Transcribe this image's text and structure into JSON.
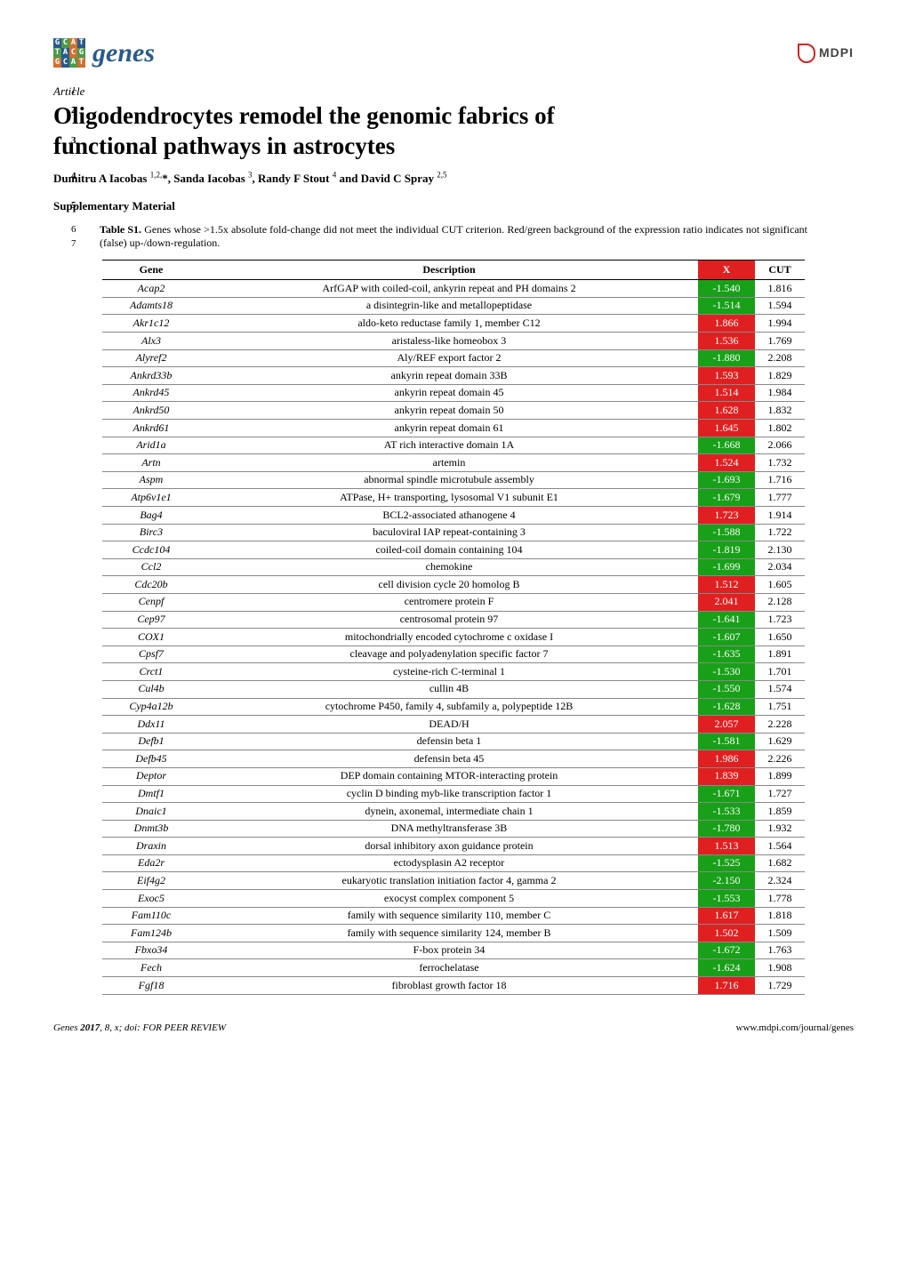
{
  "journal": {
    "name": "genes"
  },
  "publisher": {
    "name": "MDPI"
  },
  "article_label": "Article",
  "title_line1": "Oligodendrocytes remodel the genomic fabrics of",
  "title_line2": "functional pathways in astrocytes",
  "authors": "Dumitru A Iacobas 1,2,*, Sanda Iacobas 3, Randy F Stout 4 and David C Spray 2,5",
  "supp_heading": "Supplementary Material",
  "caption_bold": "Table S1.",
  "caption_rest": " Genes whose >1.5x absolute fold-change did not meet the individual CUT criterion. Red/green background of the expression ratio indicates not significant (false) up-/down-regulation.",
  "line_numbers": [
    "1",
    "2",
    "3",
    "4",
    "5",
    "6",
    "7"
  ],
  "footer_left": "Genes 2017, 8, x; doi: FOR PEER REVIEW",
  "footer_right": "www.mdpi.com/journal/genes",
  "table": {
    "type": "table",
    "background_color": "#ffffff",
    "header_border_color": "#000000",
    "row_border_color": "#888888",
    "font_size_pt": 9,
    "col1_style": "italic",
    "x_colors": {
      "up": "#e02020",
      "down": "#18a018",
      "text": "#ffffff"
    },
    "columns": [
      "Gene",
      "Description",
      "X",
      "CUT"
    ],
    "rows": [
      [
        "Acap2",
        "ArfGAP with coiled-coil, ankyrin repeat and PH domains 2",
        "-1.540",
        "1.816"
      ],
      [
        "Adamts18",
        "a disintegrin-like and metallopeptidase",
        "-1.514",
        "1.594"
      ],
      [
        "Akr1c12",
        "aldo-keto reductase family 1, member C12",
        "1.866",
        "1.994"
      ],
      [
        "Alx3",
        "aristaless-like homeobox 3",
        "1.536",
        "1.769"
      ],
      [
        "Alyref2",
        "Aly/REF export factor 2",
        "-1.880",
        "2.208"
      ],
      [
        "Ankrd33b",
        "ankyrin repeat domain 33B",
        "1.593",
        "1.829"
      ],
      [
        "Ankrd45",
        "ankyrin repeat domain 45",
        "1.514",
        "1.984"
      ],
      [
        "Ankrd50",
        "ankyrin repeat domain 50",
        "1.628",
        "1.832"
      ],
      [
        "Ankrd61",
        "ankyrin repeat domain 61",
        "1.645",
        "1.802"
      ],
      [
        "Arid1a",
        "AT rich interactive domain 1A",
        "-1.668",
        "2.066"
      ],
      [
        "Artn",
        "artemin",
        "1.524",
        "1.732"
      ],
      [
        "Aspm",
        "abnormal spindle microtubule assembly",
        "-1.693",
        "1.716"
      ],
      [
        "Atp6v1e1",
        "ATPase, H+ transporting, lysosomal V1 subunit E1",
        "-1.679",
        "1.777"
      ],
      [
        "Bag4",
        "BCL2-associated athanogene 4",
        "1.723",
        "1.914"
      ],
      [
        "Birc3",
        "baculoviral IAP repeat-containing 3",
        "-1.588",
        "1.722"
      ],
      [
        "Ccdc104",
        "coiled-coil domain containing 104",
        "-1.819",
        "2.130"
      ],
      [
        "Ccl2",
        "chemokine",
        "-1.699",
        "2.034"
      ],
      [
        "Cdc20b",
        "cell division cycle 20 homolog B",
        "1.512",
        "1.605"
      ],
      [
        "Cenpf",
        "centromere protein F",
        "2.041",
        "2.128"
      ],
      [
        "Cep97",
        "centrosomal protein 97",
        "-1.641",
        "1.723"
      ],
      [
        "COX1",
        "mitochondrially encoded cytochrome c oxidase I",
        "-1.607",
        "1.650"
      ],
      [
        "Cpsf7",
        "cleavage and polyadenylation specific factor 7",
        "-1.635",
        "1.891"
      ],
      [
        "Crct1",
        "cysteine-rich C-terminal 1",
        "-1.530",
        "1.701"
      ],
      [
        "Cul4b",
        "cullin 4B",
        "-1.550",
        "1.574"
      ],
      [
        "Cyp4a12b",
        "cytochrome P450, family 4, subfamily a, polypeptide 12B",
        "-1.628",
        "1.751"
      ],
      [
        "Ddx11",
        "DEAD/H",
        "2.057",
        "2.228"
      ],
      [
        "Defb1",
        "defensin beta 1",
        "-1.581",
        "1.629"
      ],
      [
        "Defb45",
        "defensin beta 45",
        "1.986",
        "2.226"
      ],
      [
        "Deptor",
        "DEP domain containing MTOR-interacting protein",
        "1.839",
        "1.899"
      ],
      [
        "Dmtf1",
        "cyclin D binding myb-like transcription factor 1",
        "-1.671",
        "1.727"
      ],
      [
        "Dnaic1",
        "dynein, axonemal, intermediate chain 1",
        "-1.533",
        "1.859"
      ],
      [
        "Dnmt3b",
        "DNA methyltransferase 3B",
        "-1.780",
        "1.932"
      ],
      [
        "Draxin",
        "dorsal inhibitory axon guidance protein",
        "1.513",
        "1.564"
      ],
      [
        "Eda2r",
        "ectodysplasin A2 receptor",
        "-1.525",
        "1.682"
      ],
      [
        "Eif4g2",
        "eukaryotic translation initiation factor 4, gamma 2",
        "-2.150",
        "2.324"
      ],
      [
        "Exoc5",
        "exocyst complex component 5",
        "-1.553",
        "1.778"
      ],
      [
        "Fam110c",
        "family with sequence similarity 110, member C",
        "1.617",
        "1.818"
      ],
      [
        "Fam124b",
        "family with sequence similarity 124, member B",
        "1.502",
        "1.509"
      ],
      [
        "Fbxo34",
        "F-box protein 34",
        "-1.672",
        "1.763"
      ],
      [
        "Fech",
        "ferrochelatase",
        "-1.624",
        "1.908"
      ],
      [
        "Fgf18",
        "fibroblast growth factor 18",
        "1.716",
        "1.729"
      ]
    ]
  },
  "logo_grid": {
    "cells": [
      {
        "t": "G",
        "c": "b"
      },
      {
        "t": "C",
        "c": "g"
      },
      {
        "t": "A",
        "c": "o"
      },
      {
        "t": "T",
        "c": "b"
      },
      {
        "t": "T",
        "c": "g"
      },
      {
        "t": "A",
        "c": "b"
      },
      {
        "t": "C",
        "c": "o"
      },
      {
        "t": "G",
        "c": "g"
      },
      {
        "t": "G",
        "c": "o"
      },
      {
        "t": "C",
        "c": "b"
      },
      {
        "t": "A",
        "c": "g"
      },
      {
        "t": "T",
        "c": "o"
      }
    ]
  }
}
